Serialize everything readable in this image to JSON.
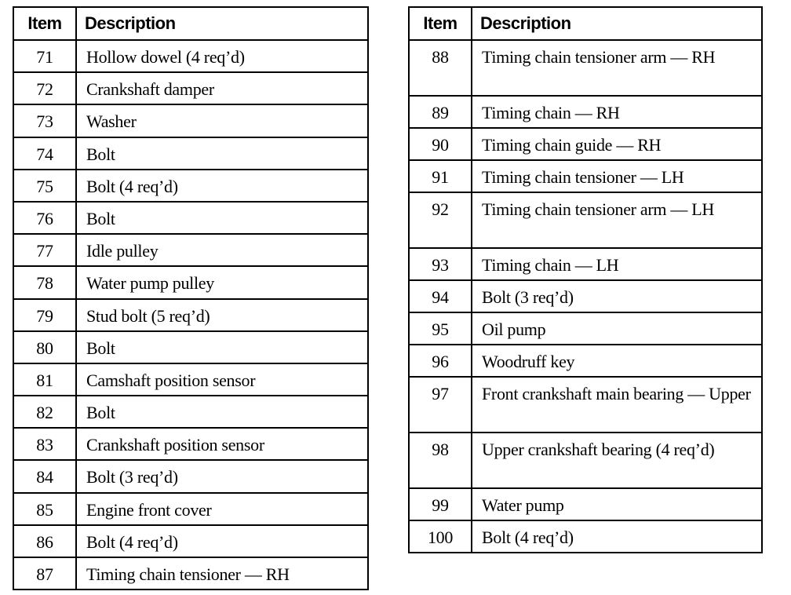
{
  "headers": {
    "item": "Item",
    "description": "Description"
  },
  "left_table": [
    {
      "item": "71",
      "description": "Hollow dowel (4 req’d)"
    },
    {
      "item": "72",
      "description": "Crankshaft damper"
    },
    {
      "item": "73",
      "description": "Washer"
    },
    {
      "item": "74",
      "description": "Bolt"
    },
    {
      "item": "75",
      "description": "Bolt (4 req’d)"
    },
    {
      "item": "76",
      "description": "Bolt"
    },
    {
      "item": "77",
      "description": "Idle pulley"
    },
    {
      "item": "78",
      "description": "Water pump pulley"
    },
    {
      "item": "79",
      "description": "Stud bolt (5 req’d)"
    },
    {
      "item": "80",
      "description": "Bolt"
    },
    {
      "item": "81",
      "description": "Camshaft position sensor"
    },
    {
      "item": "82",
      "description": "Bolt"
    },
    {
      "item": "83",
      "description": "Crankshaft position sensor"
    },
    {
      "item": "84",
      "description": "Bolt (3 req’d)"
    },
    {
      "item": "85",
      "description": "Engine front cover"
    },
    {
      "item": "86",
      "description": "Bolt (4 req’d)"
    },
    {
      "item": "87",
      "description": "Timing chain tensioner — RH"
    }
  ],
  "right_table": [
    {
      "item": "88",
      "description": "Timing chain tensioner arm — RH"
    },
    {
      "item": "89",
      "description": "Timing chain — RH"
    },
    {
      "item": "90",
      "description": "Timing chain guide — RH"
    },
    {
      "item": "91",
      "description": "Timing chain tensioner — LH"
    },
    {
      "item": "92",
      "description": "Timing chain tensioner arm — LH"
    },
    {
      "item": "93",
      "description": "Timing chain — LH"
    },
    {
      "item": "94",
      "description": "Bolt (3 req’d)"
    },
    {
      "item": "95",
      "description": "Oil pump"
    },
    {
      "item": "96",
      "description": "Woodruff key"
    },
    {
      "item": "97",
      "description": "Front crankshaft main bearing — Upper"
    },
    {
      "item": "98",
      "description": "Upper crankshaft bearing (4 req’d)"
    },
    {
      "item": "99",
      "description": "Water pump"
    },
    {
      "item": "100",
      "description": "Bolt (4 req’d)"
    }
  ]
}
